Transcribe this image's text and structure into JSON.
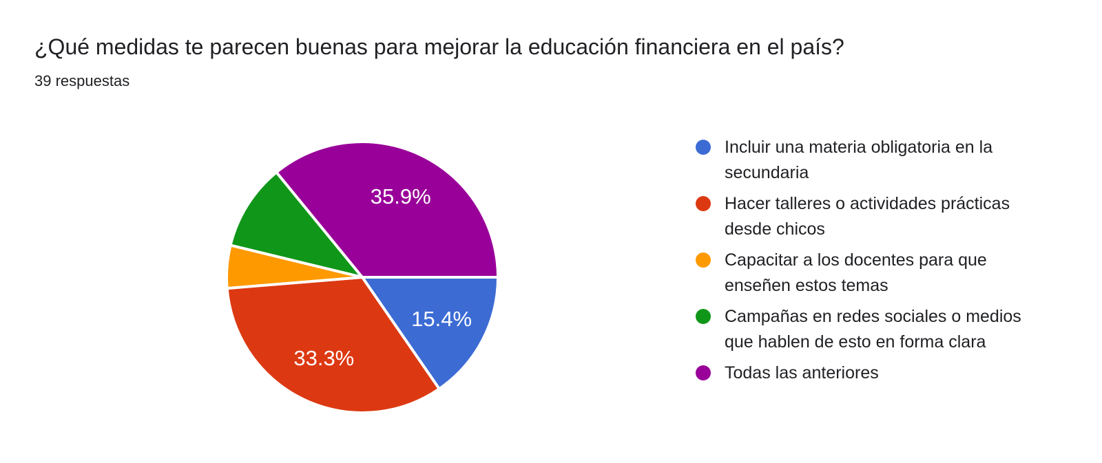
{
  "header": {
    "title": "¿Qué medidas te parecen buenas para mejorar la educación financiera en el país?",
    "responses_label": "39 respuestas"
  },
  "chart_data": {
    "type": "pie",
    "title": "¿Qué medidas te parecen buenas para mejorar la educación financiera en el país?",
    "total_responses_text": "39 respuestas",
    "start_angle_deg": 0,
    "direction": "clockwise",
    "legend_position": "right",
    "label_color": "#ffffff",
    "background": "#ffffff",
    "slices": [
      {
        "label": "Incluir una materia obligatoria en la secundaria",
        "percent": 15.4,
        "percent_label": "15.4%",
        "label_visible": true,
        "color": "#3c6bd4"
      },
      {
        "label": "Hacer talleres o actividades prácticas desde chicos",
        "percent": 33.3,
        "percent_label": "33.3%",
        "label_visible": true,
        "color": "#dc3912"
      },
      {
        "label": "Capacitar a los docentes para que enseñen estos temas",
        "percent": 5.1,
        "percent_label": "5.1%",
        "label_visible": false,
        "color": "#ff9900"
      },
      {
        "label": "Campañas en redes sociales o medios que hablen de esto en forma clara",
        "percent": 10.3,
        "percent_label": "10.3%",
        "label_visible": false,
        "color": "#109618"
      },
      {
        "label": "Todas las anteriores",
        "percent": 35.9,
        "percent_label": "35.9%",
        "label_visible": true,
        "color": "#990099"
      }
    ]
  }
}
